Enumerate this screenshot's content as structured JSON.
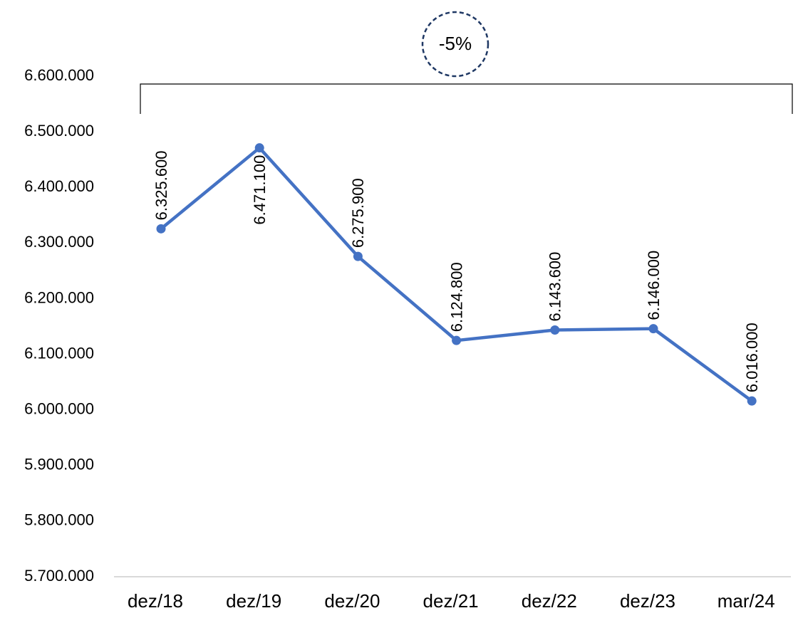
{
  "chart_data": {
    "type": "line",
    "categories": [
      "dez/18",
      "dez/19",
      "dez/20",
      "dez/21",
      "dez/22",
      "dez/23",
      "mar/24"
    ],
    "values": [
      6325600,
      6471100,
      6275900,
      6124800,
      6143600,
      6146000,
      6016000
    ],
    "value_labels": [
      "6.325.600",
      "6.471.100",
      "6.275.900",
      "6.124.800",
      "6.143.600",
      "6.146.000",
      "6.016.000"
    ],
    "color": "#4472c4",
    "ylim": [
      5700000,
      6600000
    ],
    "yticks": [
      {
        "value": 5700000,
        "label": "5.700.000"
      },
      {
        "value": 5800000,
        "label": "5.800.000"
      },
      {
        "value": 5900000,
        "label": "5.900.000"
      },
      {
        "value": 6000000,
        "label": "6.000.000"
      },
      {
        "value": 6100000,
        "label": "6.100.000"
      },
      {
        "value": 6200000,
        "label": "6.200.000"
      },
      {
        "value": 6300000,
        "label": "6.300.000"
      },
      {
        "value": 6400000,
        "label": "6.400.000"
      },
      {
        "value": 6500000,
        "label": "6.500.000"
      },
      {
        "value": 6600000,
        "label": "6.600.000"
      }
    ],
    "grid": false,
    "annotation": "-5%"
  }
}
